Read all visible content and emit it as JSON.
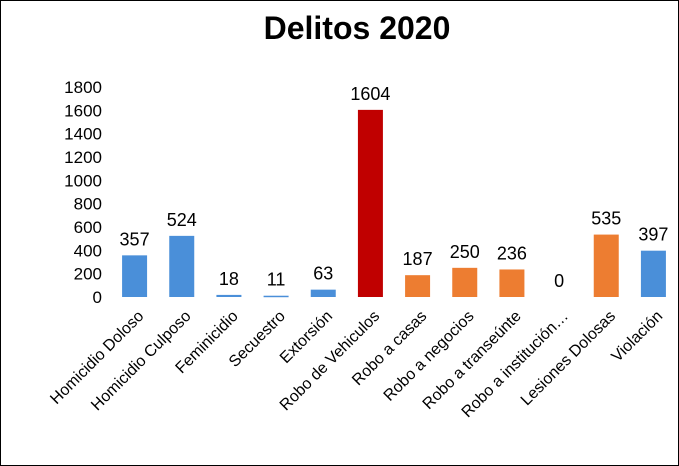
{
  "chart_data": {
    "type": "bar",
    "title": "Delitos 2020",
    "xlabel": "",
    "ylabel": "",
    "ylim": [
      0,
      1800
    ],
    "yticks": [
      0,
      200,
      400,
      600,
      800,
      1000,
      1200,
      1400,
      1600,
      1800
    ],
    "grid": false,
    "legend": "none",
    "categories": [
      "Homicidio Doloso",
      "Homicidio Culposo",
      "Feminicidio",
      "Secuestro",
      "Extorsión",
      "Robo de Vehiculos",
      "Robo a casas",
      "Robo a negocios",
      "Robo a transeúnte",
      "Robo a institución…",
      "Lesiones Dolosas",
      "Violación"
    ],
    "values": [
      357,
      524,
      18,
      11,
      63,
      1604,
      187,
      250,
      236,
      0,
      535,
      397
    ],
    "data_labels": [
      "357",
      "524",
      "18",
      "11",
      "63",
      "1604",
      "187",
      "250",
      "236",
      "0",
      "535",
      "397"
    ],
    "bar_colors": [
      "#4a8fd9",
      "#4a8fd9",
      "#4a8fd9",
      "#4a8fd9",
      "#4a8fd9",
      "#c00000",
      "#ed7d31",
      "#ed7d31",
      "#ed7d31",
      "#ed7d31",
      "#ed7d31",
      "#4a8fd9"
    ]
  }
}
